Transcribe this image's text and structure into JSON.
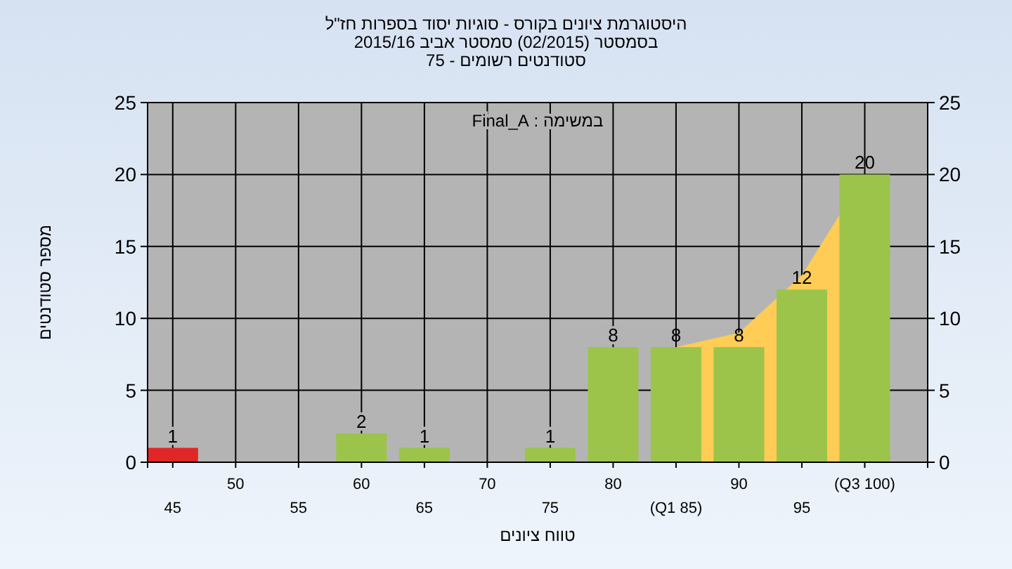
{
  "chart_data": {
    "type": "bar",
    "title": "היסטוגרמת ציונים בקורס - סוגיות יסוד בספרות חז\"ל",
    "subtitle": "בסמסטר  (02/2015)  סמסטר אביב 2015/16\nסטודנטים רשומים - 75",
    "xlabel": "טווח ציונים",
    "ylabel": "מספר סטודנטים",
    "annotations": [
      "במשימה : Final_A"
    ],
    "categories": [
      "45",
      "50",
      "55",
      "60",
      "65",
      "70",
      "75",
      "80",
      "(Q1 85)",
      "90",
      "95",
      "(Q3 100)"
    ],
    "series": [
      {
        "type": "area",
        "color": "#ffcc55",
        "values": [
          null,
          null,
          null,
          null,
          null,
          null,
          null,
          null,
          8,
          9,
          13,
          20
        ]
      },
      {
        "colors": [
          "#e02626",
          null,
          null,
          "#9cc44a",
          "#9cc44a",
          null,
          "#9cc44a",
          "#9cc44a",
          "#9cc44a",
          "#9cc44a",
          "#9cc44a",
          "#9cc44a"
        ],
        "values": [
          1,
          0,
          0,
          2,
          1,
          0,
          1,
          8,
          8,
          8,
          12,
          20
        ],
        "value_labels": [
          "1",
          null,
          null,
          "2",
          "1",
          null,
          "1",
          "8",
          "8",
          "8",
          "12",
          "20"
        ]
      }
    ],
    "ylim": [
      0,
      25
    ],
    "yticks": [
      0,
      5,
      10,
      15,
      20,
      25
    ],
    "y2lim": [
      0,
      25
    ],
    "y2ticks": [
      0,
      5,
      10,
      15,
      20,
      25
    ],
    "grid": true
  }
}
